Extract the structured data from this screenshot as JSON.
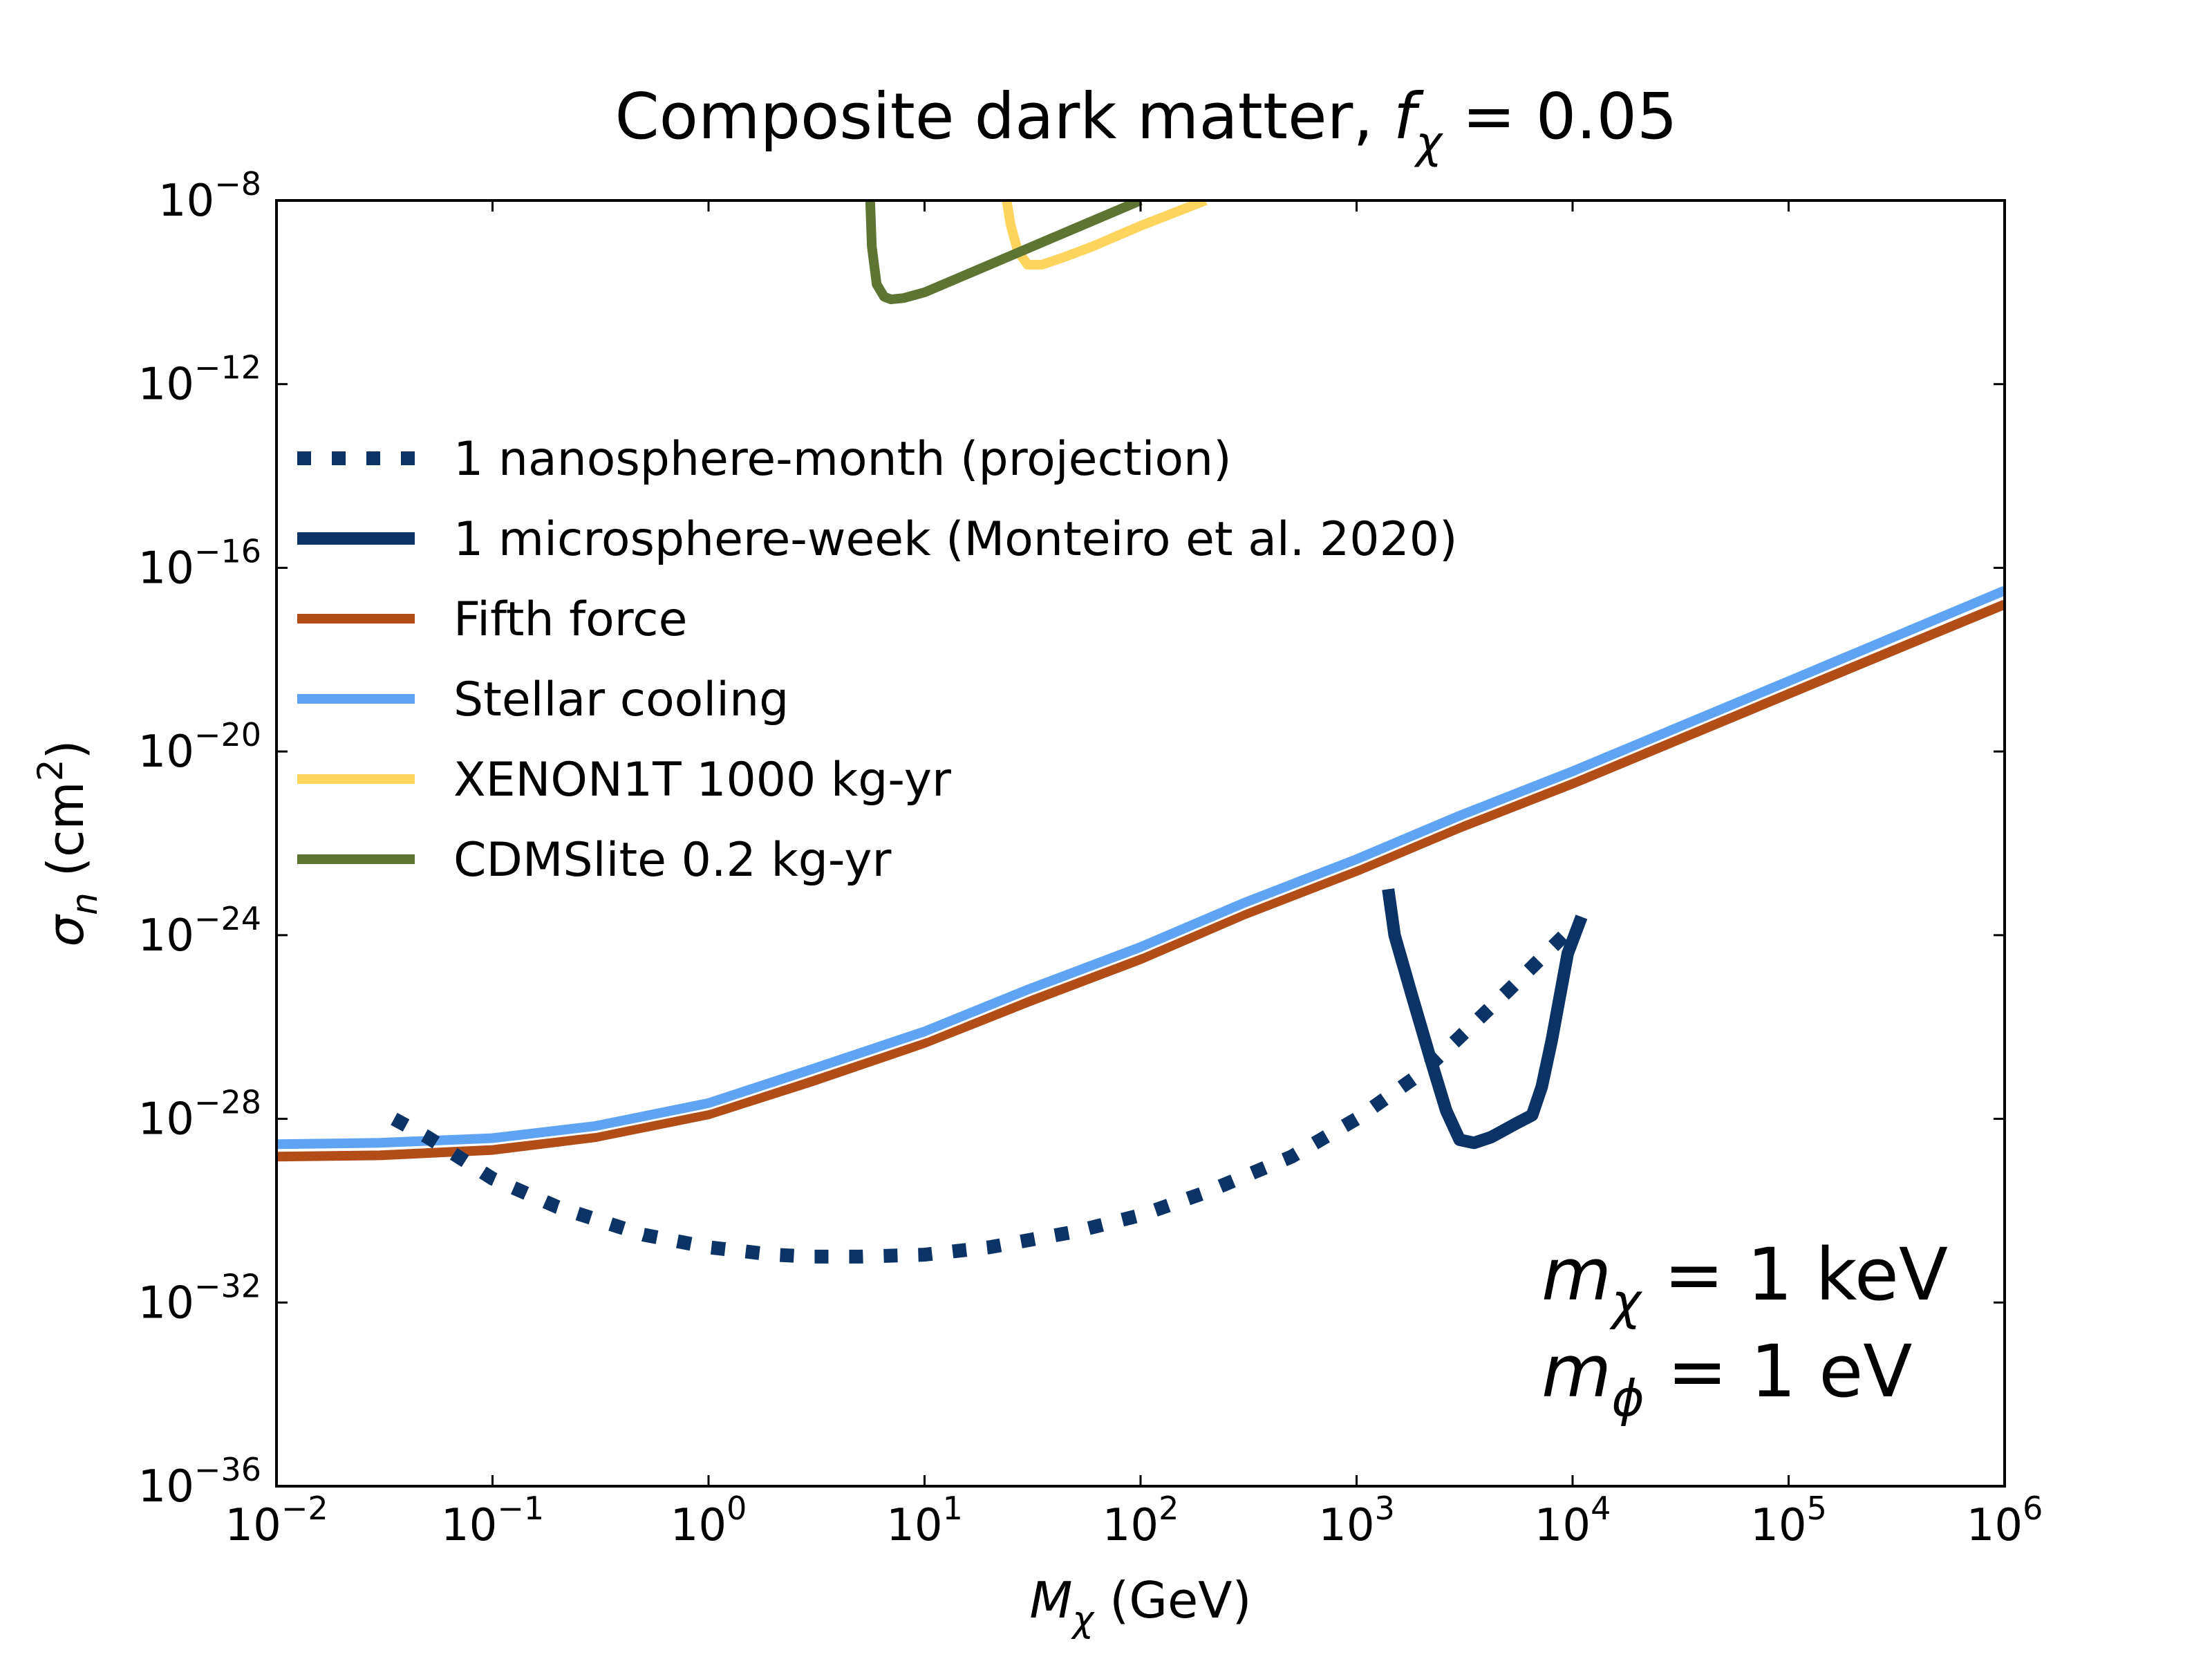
{
  "chart_data": {
    "type": "line",
    "title": {
      "prefix": "Composite dark matter, ",
      "var": "f",
      "sub": "χ",
      "suffix": " = 0.05"
    },
    "xlabel": {
      "var": "M",
      "sub": "χ",
      "unit": " (GeV)"
    },
    "ylabel": {
      "var": "σ",
      "sub": "n",
      "unit_pre": " (cm",
      "unit_sup": "2",
      "unit_post": ")"
    },
    "x_scale": "log",
    "y_scale": "log",
    "xlim": [
      0.01,
      1000000
    ],
    "ylim": [
      1e-36,
      1e-08
    ],
    "x_ticks": [
      {
        "base": "10",
        "exp": "−2",
        "value": 0.01
      },
      {
        "base": "10",
        "exp": "−1",
        "value": 0.1
      },
      {
        "base": "10",
        "exp": "0",
        "value": 1
      },
      {
        "base": "10",
        "exp": "1",
        "value": 10
      },
      {
        "base": "10",
        "exp": "2",
        "value": 100
      },
      {
        "base": "10",
        "exp": "3",
        "value": 1000
      },
      {
        "base": "10",
        "exp": "4",
        "value": 10000
      },
      {
        "base": "10",
        "exp": "5",
        "value": 100000
      },
      {
        "base": "10",
        "exp": "6",
        "value": 1000000
      }
    ],
    "y_ticks": [
      {
        "base": "10",
        "exp": "−8",
        "value": 1e-08
      },
      {
        "base": "10",
        "exp": "−12",
        "value": 1e-12
      },
      {
        "base": "10",
        "exp": "−16",
        "value": 1e-16
      },
      {
        "base": "10",
        "exp": "−20",
        "value": 1e-20
      },
      {
        "base": "10",
        "exp": "−24",
        "value": 1e-24
      },
      {
        "base": "10",
        "exp": "−28",
        "value": 1e-28
      },
      {
        "base": "10",
        "exp": "−32",
        "value": 1e-32
      },
      {
        "base": "10",
        "exp": "−36",
        "value": 1e-36
      }
    ],
    "legend_position": "upper-left",
    "grid": false,
    "series": [
      {
        "name": "1 nanosphere-month (projection)",
        "color": "#0b3366",
        "style": "dotted",
        "x": [
          0.035,
          0.05,
          0.1,
          0.2,
          0.5,
          1,
          2,
          3,
          5,
          10,
          20,
          50,
          100,
          200,
          500,
          1000,
          2000,
          3000,
          5000,
          10000
        ],
        "y": [
          1e-28,
          4e-29,
          5e-30,
          1.2e-30,
          3e-31,
          1.6e-31,
          1.1e-31,
          1e-31,
          1e-31,
          1.1e-31,
          1.6e-31,
          3.5e-31,
          8e-31,
          2.5e-30,
          1.5e-29,
          1e-28,
          1e-27,
          6e-27,
          6e-26,
          1.5e-24
        ]
      },
      {
        "name": "1 microsphere-week (Monteiro et al. 2020)",
        "color": "#0b3366",
        "style": "solid",
        "x": [
          1400,
          1500,
          1800,
          2200,
          2600,
          3000,
          3500,
          4200,
          5500,
          6500,
          7200,
          8000,
          9500,
          11000
        ],
        "y": [
          1e-23,
          1e-24,
          5e-26,
          2e-27,
          1.5e-28,
          3.5e-29,
          3e-29,
          4e-29,
          8e-29,
          1.2e-28,
          5e-28,
          5e-27,
          4e-25,
          2.5e-24
        ]
      },
      {
        "name": "Fifth force",
        "color": "#b34d18",
        "style": "solid",
        "x": [
          0.01,
          0.03,
          0.1,
          0.3,
          1,
          3,
          10,
          30,
          100,
          300,
          1000,
          3000,
          10000,
          100000,
          1000000
        ],
        "y": [
          1.5e-29,
          1.6e-29,
          2.1e-29,
          4e-29,
          1.25e-28,
          6.5e-28,
          4.5e-27,
          3.5e-26,
          3e-25,
          2.8e-24,
          2.5e-23,
          2.2e-22,
          2e-21,
          1.8e-19,
          1.6e-17
        ]
      },
      {
        "name": "Stellar cooling",
        "color": "#5ea4f2",
        "style": "solid",
        "x": [
          0.01,
          0.03,
          0.1,
          0.3,
          1,
          3,
          10,
          30,
          100,
          300,
          1000,
          3000,
          10000,
          100000,
          1000000
        ],
        "y": [
          2.8e-29,
          3e-29,
          3.8e-29,
          7e-29,
          2.2e-28,
          1.2e-27,
          8e-27,
          6.5e-26,
          5.5e-25,
          5e-24,
          4.5e-23,
          4e-22,
          3.7e-21,
          3.4e-19,
          3.2e-17
        ]
      },
      {
        "name": "XENON1T 1000 kg-yr",
        "color": "#fdd55d",
        "style": "solid",
        "x": [
          24,
          25,
          27,
          30,
          35,
          45,
          60,
          100,
          200
        ],
        "y": [
          1e-08,
          3e-09,
          8e-10,
          4e-10,
          4e-10,
          6e-10,
          1e-09,
          2.8e-09,
          1e-08
        ]
      },
      {
        "name": "CDMSlite 0.2 kg-yr",
        "color": "#5e7432",
        "style": "solid",
        "x": [
          5.6,
          5.7,
          6,
          6.5,
          7,
          8,
          10,
          20,
          50,
          100
        ],
        "y": [
          1e-08,
          1e-09,
          1.5e-10,
          8e-11,
          7e-11,
          7.5e-11,
          1e-10,
          4e-10,
          2.5e-09,
          1e-08
        ]
      }
    ],
    "annotations": [
      {
        "var": "m",
        "sub": "χ",
        "text": " = 1 keV"
      },
      {
        "var": "m",
        "sub": "ϕ",
        "text": " = 1 eV"
      }
    ]
  }
}
